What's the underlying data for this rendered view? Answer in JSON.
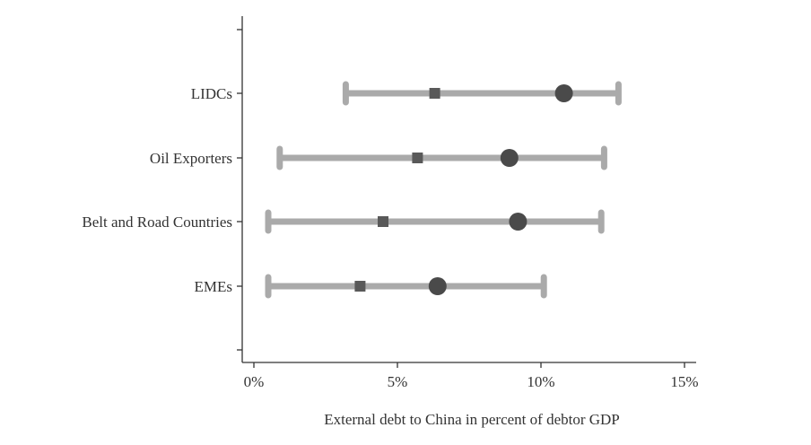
{
  "chart_data": {
    "type": "dot-range",
    "xlabel": "External debt to China in percent of debtor GDP",
    "ylabel": "",
    "xlim": [
      0,
      15
    ],
    "xticks": [
      0,
      5,
      10,
      15
    ],
    "xtick_labels": [
      "0%",
      "5%",
      "10%",
      "15%"
    ],
    "grid": false,
    "categories": [
      "LIDCs",
      "Oil Exporters",
      "Belt and Road Countries",
      "EMEs"
    ],
    "series": [
      {
        "marker": "range",
        "low": [
          3.2,
          0.9,
          0.5,
          0.5
        ],
        "high": [
          12.7,
          12.2,
          12.1,
          10.1
        ]
      },
      {
        "marker": "square",
        "values": [
          6.3,
          5.7,
          4.5,
          3.7
        ]
      },
      {
        "marker": "circle",
        "values": [
          10.8,
          8.9,
          9.2,
          6.4
        ]
      }
    ],
    "colors": {
      "range": "#aaaaaa",
      "square": "#595959",
      "circle": "#4a4a4a",
      "axis": "#333333"
    }
  }
}
